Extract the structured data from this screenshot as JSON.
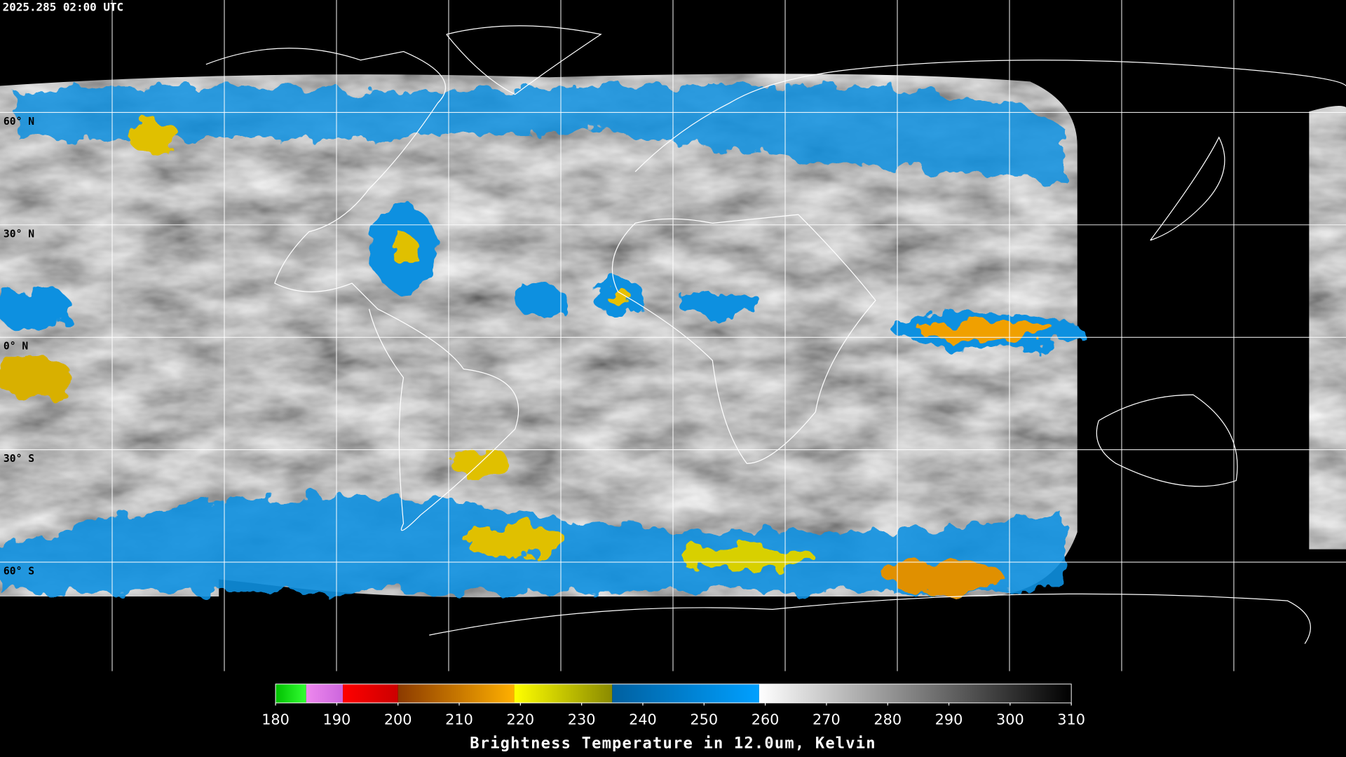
{
  "header": {
    "timestamp": "2025.285 02:00 UTC"
  },
  "map": {
    "lat_lines": [
      {
        "value": 60,
        "label": "60° N"
      },
      {
        "value": 30,
        "label": "30° N"
      },
      {
        "value": 0,
        "label": "0° N"
      },
      {
        "value": -30,
        "label": "30° S"
      },
      {
        "value": -60,
        "label": "60° S"
      }
    ]
  },
  "colorbar": {
    "range": [
      180,
      310
    ],
    "ticks": [
      180,
      190,
      200,
      210,
      220,
      230,
      240,
      250,
      260,
      270,
      280,
      290,
      300,
      310
    ],
    "segments": [
      {
        "from": 180,
        "to": 185,
        "colors": [
          "#00c000",
          "#33ff33"
        ]
      },
      {
        "from": 185,
        "to": 191,
        "colors": [
          "#ee88ee",
          "#cc66dd"
        ]
      },
      {
        "from": 191,
        "to": 200,
        "colors": [
          "#ff0000",
          "#cc0000"
        ]
      },
      {
        "from": 200,
        "to": 219,
        "colors": [
          "#8b3a00",
          "#ffb000"
        ]
      },
      {
        "from": 219,
        "to": 235,
        "colors": [
          "#ffff00",
          "#8a8a00"
        ]
      },
      {
        "from": 235,
        "to": 259,
        "colors": [
          "#0060a0",
          "#00a0ff"
        ]
      },
      {
        "from": 259,
        "to": 310,
        "colors": [
          "#ffffff",
          "#000000"
        ]
      }
    ],
    "title": "Brightness Temperature in 12.0um, Kelvin"
  }
}
